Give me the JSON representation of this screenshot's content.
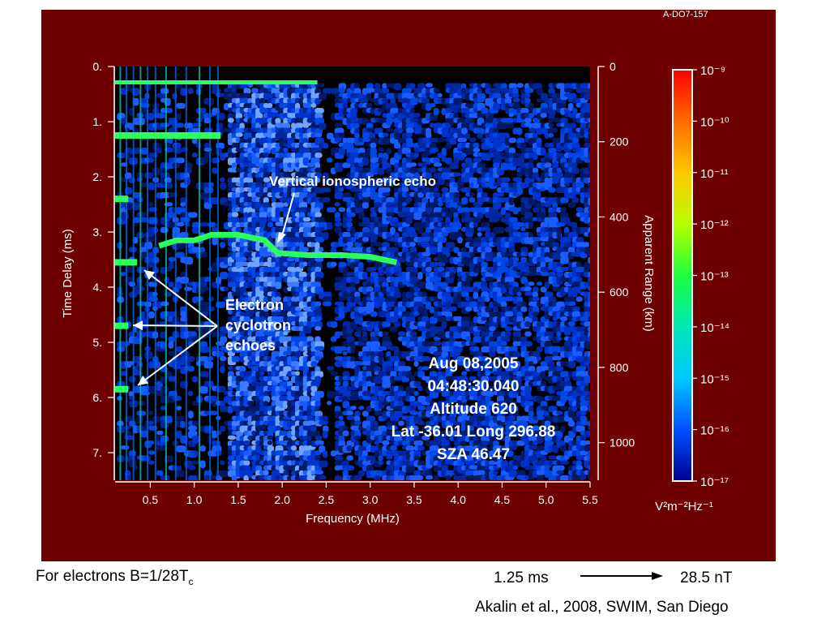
{
  "figure_id": "A-DO7-157",
  "chart_data": {
    "type": "heatmap",
    "title": "",
    "xlabel": "Frequency (MHz)",
    "ylabel": "Time Delay (ms)",
    "y2label": "Apparent Range (km)",
    "xlim": [
      0.1,
      5.5
    ],
    "ylim": [
      0,
      7.5
    ],
    "y2lim": [
      0,
      1100
    ],
    "x_ticks": [
      "0.5",
      "1.0",
      "1.5",
      "2.0",
      "2.5",
      "3.0",
      "3.5",
      "4.0",
      "4.5",
      "5.0",
      "5.5"
    ],
    "x_tick_values": [
      0.5,
      1.0,
      1.5,
      2.0,
      2.5,
      3.0,
      3.5,
      4.0,
      4.5,
      5.0,
      5.5
    ],
    "y_ticks": [
      "0.",
      "1.",
      "2.",
      "3.",
      "4.",
      "5.",
      "6.",
      "7."
    ],
    "y_tick_values": [
      0,
      1,
      2,
      3,
      4,
      5,
      6,
      7
    ],
    "y2_ticks": [
      "0",
      "200",
      "400",
      "600",
      "800",
      "1000"
    ],
    "y2_tick_values": [
      0,
      200,
      400,
      600,
      800,
      1000
    ],
    "colorbar": {
      "unit_label": "V²m⁻²Hz⁻¹",
      "tick_values": [
        "10⁻⁹",
        "10⁻¹⁰",
        "10⁻¹¹",
        "10⁻¹²",
        "10⁻¹³",
        "10⁻¹⁴",
        "10⁻¹⁵",
        "10⁻¹⁶",
        "10⁻¹⁷"
      ],
      "colors": [
        "#ff0000",
        "#ff6a00",
        "#ffc800",
        "#b8ff00",
        "#1eff3c",
        "#00e6b4",
        "#00c8ff",
        "#0050ff",
        "#000090"
      ]
    },
    "annotations": {
      "vertical_echo": "Vertical ionospheric echo",
      "cyclotron": [
        "Electron",
        "cyclotron",
        "echoes"
      ],
      "info": [
        "Aug 08,2005",
        "04:48:30.040",
        "Altitude 620",
        "Lat -36.01 Long 296.88",
        "SZA 46.47"
      ]
    },
    "echo_trace": [
      {
        "x": 0.6,
        "y": 3.25
      },
      {
        "x": 0.8,
        "y": 3.15
      },
      {
        "x": 1.0,
        "y": 3.15
      },
      {
        "x": 1.2,
        "y": 3.05
      },
      {
        "x": 1.5,
        "y": 3.05
      },
      {
        "x": 1.8,
        "y": 3.15
      },
      {
        "x": 1.95,
        "y": 3.38
      },
      {
        "x": 2.3,
        "y": 3.42
      },
      {
        "x": 2.7,
        "y": 3.42
      },
      {
        "x": 3.0,
        "y": 3.45
      },
      {
        "x": 3.3,
        "y": 3.55
      }
    ],
    "cyclotron_echoes_ms": [
      1.25,
      2.4,
      3.55,
      4.7,
      5.85
    ],
    "colors": {
      "panel": "#6e0000",
      "background": "#000000",
      "noise": "#0033cc",
      "echo": "#2aff5a"
    }
  },
  "footer": {
    "note_prefix": "For electrons B=1/28T",
    "note_sub": "c",
    "conv_left": "1.25 ms",
    "conv_right": "28.5 nT",
    "citation": "Akalin et al., 2008, SWIM, San Diego"
  }
}
